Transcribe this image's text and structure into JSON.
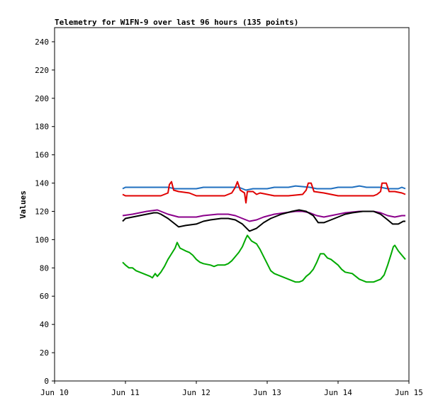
{
  "chart_data": {
    "type": "line",
    "title": "Telemetry for W1FN-9 over last 96 hours (135 points)",
    "xlabel": "",
    "ylabel": "Values",
    "ylim": [
      0,
      250
    ],
    "xlim": [
      0,
      5
    ],
    "grid": false,
    "legend": "none",
    "x_ticks": [
      {
        "value": 0,
        "label": "Jun 10"
      },
      {
        "value": 1,
        "label": "Jun 11"
      },
      {
        "value": 2,
        "label": "Jun 12"
      },
      {
        "value": 3,
        "label": "Jun 13"
      },
      {
        "value": 4,
        "label": "Jun 14"
      },
      {
        "value": 5,
        "label": "Jun 15"
      }
    ],
    "y_ticks": [
      0,
      20,
      40,
      60,
      80,
      100,
      120,
      140,
      160,
      180,
      200,
      220,
      240
    ],
    "series": [
      {
        "color": "#1f6fbf",
        "points": [
          [
            0.96,
            136
          ],
          [
            1.0,
            137
          ],
          [
            1.2,
            137
          ],
          [
            1.4,
            137
          ],
          [
            1.6,
            137
          ],
          [
            1.7,
            136
          ],
          [
            2.0,
            136
          ],
          [
            2.1,
            137
          ],
          [
            2.3,
            137
          ],
          [
            2.5,
            137
          ],
          [
            2.6,
            137
          ],
          [
            2.7,
            135
          ],
          [
            2.8,
            136
          ],
          [
            3.0,
            136
          ],
          [
            3.1,
            137
          ],
          [
            3.3,
            137
          ],
          [
            3.4,
            138
          ],
          [
            3.6,
            137
          ],
          [
            3.7,
            136
          ],
          [
            3.9,
            136
          ],
          [
            4.0,
            137
          ],
          [
            4.2,
            137
          ],
          [
            4.3,
            138
          ],
          [
            4.4,
            137
          ],
          [
            4.6,
            137
          ],
          [
            4.7,
            136
          ],
          [
            4.85,
            136
          ],
          [
            4.9,
            137
          ],
          [
            4.95,
            136
          ]
        ]
      },
      {
        "color": "#e00000",
        "points": [
          [
            0.96,
            132
          ],
          [
            1.0,
            131
          ],
          [
            1.3,
            131
          ],
          [
            1.5,
            131
          ],
          [
            1.6,
            133
          ],
          [
            1.62,
            139
          ],
          [
            1.65,
            141
          ],
          [
            1.68,
            135
          ],
          [
            1.75,
            134
          ],
          [
            1.9,
            133
          ],
          [
            2.0,
            131
          ],
          [
            2.2,
            131
          ],
          [
            2.4,
            131
          ],
          [
            2.5,
            133
          ],
          [
            2.55,
            137
          ],
          [
            2.58,
            141
          ],
          [
            2.62,
            135
          ],
          [
            2.68,
            133
          ],
          [
            2.7,
            126
          ],
          [
            2.72,
            134
          ],
          [
            2.8,
            134
          ],
          [
            2.85,
            132
          ],
          [
            2.9,
            133
          ],
          [
            3.1,
            131
          ],
          [
            3.3,
            131
          ],
          [
            3.5,
            132
          ],
          [
            3.55,
            135
          ],
          [
            3.58,
            140
          ],
          [
            3.62,
            140
          ],
          [
            3.66,
            134
          ],
          [
            3.8,
            133
          ],
          [
            4.0,
            131
          ],
          [
            4.2,
            131
          ],
          [
            4.5,
            131
          ],
          [
            4.55,
            132
          ],
          [
            4.6,
            134
          ],
          [
            4.62,
            140
          ],
          [
            4.68,
            140
          ],
          [
            4.72,
            134
          ],
          [
            4.8,
            134
          ],
          [
            4.9,
            133
          ],
          [
            4.95,
            132
          ]
        ]
      },
      {
        "color": "#8b008b",
        "points": [
          [
            0.96,
            117
          ],
          [
            1.1,
            118
          ],
          [
            1.3,
            120
          ],
          [
            1.45,
            121
          ],
          [
            1.5,
            120
          ],
          [
            1.6,
            118
          ],
          [
            1.75,
            116
          ],
          [
            1.9,
            116
          ],
          [
            2.0,
            116
          ],
          [
            2.1,
            117
          ],
          [
            2.3,
            118
          ],
          [
            2.45,
            118
          ],
          [
            2.55,
            117
          ],
          [
            2.65,
            115
          ],
          [
            2.75,
            113
          ],
          [
            2.85,
            114
          ],
          [
            2.95,
            116
          ],
          [
            3.1,
            118
          ],
          [
            3.25,
            119
          ],
          [
            3.4,
            120
          ],
          [
            3.5,
            120
          ],
          [
            3.6,
            119
          ],
          [
            3.7,
            117
          ],
          [
            3.8,
            116
          ],
          [
            3.9,
            117
          ],
          [
            4.0,
            118
          ],
          [
            4.1,
            119
          ],
          [
            4.3,
            120
          ],
          [
            4.5,
            120
          ],
          [
            4.6,
            119
          ],
          [
            4.7,
            117
          ],
          [
            4.8,
            116
          ],
          [
            4.9,
            117
          ],
          [
            4.95,
            117
          ]
        ]
      },
      {
        "color": "#000000",
        "points": [
          [
            0.96,
            113
          ],
          [
            1.0,
            115
          ],
          [
            1.1,
            116
          ],
          [
            1.2,
            117
          ],
          [
            1.3,
            118
          ],
          [
            1.4,
            119
          ],
          [
            1.45,
            119
          ],
          [
            1.5,
            118
          ],
          [
            1.6,
            115
          ],
          [
            1.7,
            111
          ],
          [
            1.75,
            109
          ],
          [
            1.85,
            110
          ],
          [
            2.0,
            111
          ],
          [
            2.1,
            113
          ],
          [
            2.2,
            114
          ],
          [
            2.35,
            115
          ],
          [
            2.45,
            115
          ],
          [
            2.55,
            114
          ],
          [
            2.65,
            111
          ],
          [
            2.75,
            106
          ],
          [
            2.85,
            108
          ],
          [
            2.95,
            112
          ],
          [
            3.05,
            115
          ],
          [
            3.2,
            118
          ],
          [
            3.35,
            120
          ],
          [
            3.45,
            121
          ],
          [
            3.55,
            120
          ],
          [
            3.65,
            117
          ],
          [
            3.72,
            112
          ],
          [
            3.8,
            112
          ],
          [
            3.9,
            114
          ],
          [
            4.0,
            116
          ],
          [
            4.1,
            118
          ],
          [
            4.2,
            119
          ],
          [
            4.35,
            120
          ],
          [
            4.5,
            120
          ],
          [
            4.6,
            118
          ],
          [
            4.7,
            114
          ],
          [
            4.77,
            111
          ],
          [
            4.85,
            111
          ],
          [
            4.92,
            113
          ],
          [
            4.95,
            113
          ]
        ]
      },
      {
        "color": "#00aa00",
        "points": [
          [
            0.96,
            84
          ],
          [
            1.0,
            82
          ],
          [
            1.05,
            80
          ],
          [
            1.1,
            80
          ],
          [
            1.15,
            78
          ],
          [
            1.2,
            77
          ],
          [
            1.25,
            76
          ],
          [
            1.3,
            75
          ],
          [
            1.35,
            74
          ],
          [
            1.38,
            73
          ],
          [
            1.42,
            76
          ],
          [
            1.45,
            74
          ],
          [
            1.5,
            77
          ],
          [
            1.55,
            81
          ],
          [
            1.6,
            86
          ],
          [
            1.65,
            90
          ],
          [
            1.7,
            94
          ],
          [
            1.73,
            98
          ],
          [
            1.77,
            94
          ],
          [
            1.85,
            92
          ],
          [
            1.9,
            91
          ],
          [
            1.95,
            89
          ],
          [
            2.0,
            86
          ],
          [
            2.05,
            84
          ],
          [
            2.1,
            83
          ],
          [
            2.2,
            82
          ],
          [
            2.25,
            81
          ],
          [
            2.3,
            82
          ],
          [
            2.4,
            82
          ],
          [
            2.45,
            83
          ],
          [
            2.5,
            85
          ],
          [
            2.55,
            88
          ],
          [
            2.6,
            91
          ],
          [
            2.65,
            95
          ],
          [
            2.7,
            101
          ],
          [
            2.72,
            103
          ],
          [
            2.78,
            99
          ],
          [
            2.85,
            97
          ],
          [
            2.9,
            93
          ],
          [
            2.95,
            88
          ],
          [
            3.0,
            83
          ],
          [
            3.05,
            78
          ],
          [
            3.1,
            76
          ],
          [
            3.2,
            74
          ],
          [
            3.3,
            72
          ],
          [
            3.4,
            70
          ],
          [
            3.45,
            70
          ],
          [
            3.5,
            71
          ],
          [
            3.55,
            74
          ],
          [
            3.6,
            76
          ],
          [
            3.65,
            79
          ],
          [
            3.7,
            84
          ],
          [
            3.75,
            90
          ],
          [
            3.8,
            90
          ],
          [
            3.85,
            87
          ],
          [
            3.9,
            86
          ],
          [
            4.0,
            82
          ],
          [
            4.05,
            79
          ],
          [
            4.1,
            77
          ],
          [
            4.2,
            76
          ],
          [
            4.3,
            72
          ],
          [
            4.4,
            70
          ],
          [
            4.5,
            70
          ],
          [
            4.6,
            72
          ],
          [
            4.65,
            75
          ],
          [
            4.7,
            82
          ],
          [
            4.75,
            90
          ],
          [
            4.78,
            95
          ],
          [
            4.8,
            96
          ],
          [
            4.85,
            92
          ],
          [
            4.9,
            89
          ],
          [
            4.95,
            86
          ]
        ]
      }
    ]
  }
}
